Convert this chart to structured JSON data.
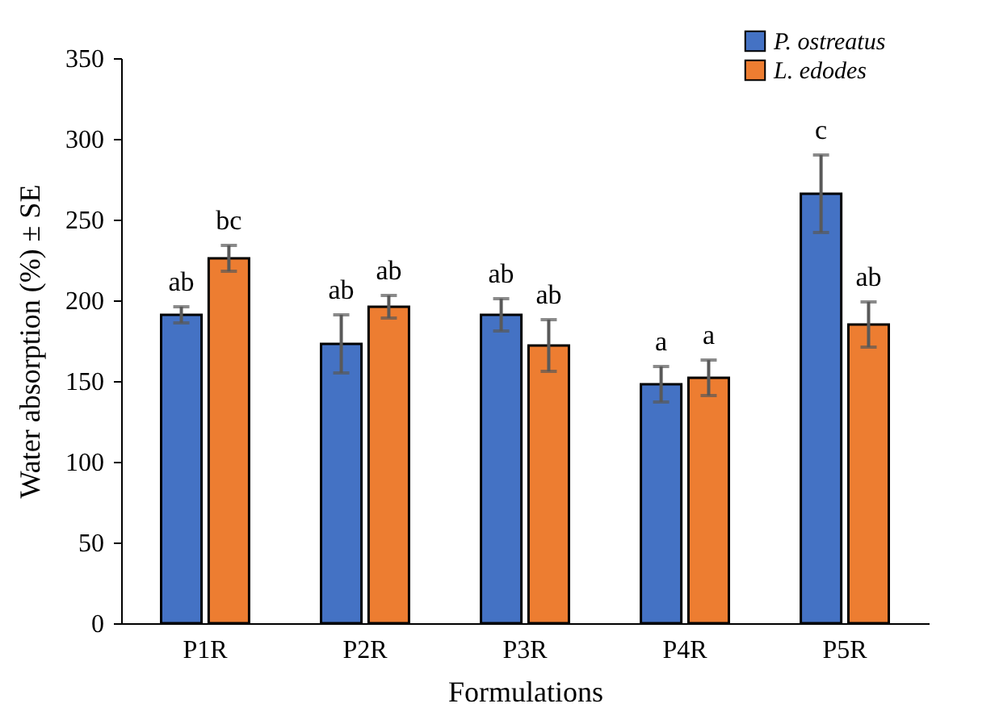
{
  "chart_data": {
    "type": "bar",
    "xlabel": "Formulations",
    "ylabel": "Water absorption (%) ± SE",
    "categories": [
      "P1R",
      "P2R",
      "P3R",
      "P4R",
      "P5R"
    ],
    "series": [
      {
        "name": "P. ostreatus",
        "color": "#4472c4",
        "values": [
          191,
          173,
          191,
          148,
          266
        ],
        "errors": [
          5,
          18,
          10,
          11,
          24
        ]
      },
      {
        "name": "L. edodes",
        "color": "#ed7d31",
        "values": [
          226,
          196,
          172,
          152,
          185
        ],
        "errors": [
          8,
          7,
          16,
          11,
          14
        ]
      }
    ],
    "ylim": [
      0,
      350
    ],
    "yticks": [
      0,
      50,
      100,
      150,
      200,
      250,
      300,
      350
    ],
    "grid": false,
    "legend": "top right",
    "annotations": [
      "ab",
      "bc",
      "ab",
      "ab",
      "ab",
      "ab",
      "a",
      "a",
      "c",
      "ab"
    ]
  }
}
